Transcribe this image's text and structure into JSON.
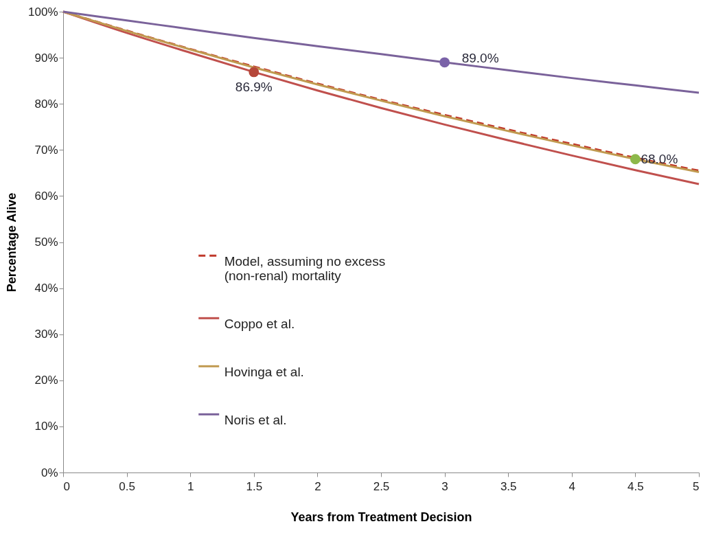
{
  "chart_data": {
    "type": "line",
    "xlabel": "Years from Treatment Decision",
    "ylabel": "Percentage Alive",
    "x": [
      0,
      0.5,
      1,
      1.5,
      2,
      2.5,
      3,
      3.5,
      4,
      4.5,
      5
    ],
    "xlim": [
      0,
      5
    ],
    "xticks": [
      0,
      0.5,
      1,
      1.5,
      2,
      2.5,
      3,
      3.5,
      4,
      4.5,
      5
    ],
    "ylim": [
      0,
      100
    ],
    "yticks": [
      {
        "value": 0,
        "label": "0%"
      },
      {
        "value": 10,
        "label": "10%"
      },
      {
        "value": 20,
        "label": "20%"
      },
      {
        "value": 30,
        "label": "30%"
      },
      {
        "value": 40,
        "label": "40%"
      },
      {
        "value": 50,
        "label": "50%"
      },
      {
        "value": 60,
        "label": "60%"
      },
      {
        "value": 70,
        "label": "70%"
      },
      {
        "value": 80,
        "label": "80%"
      },
      {
        "value": 90,
        "label": "90%"
      },
      {
        "value": 100,
        "label": "100%"
      }
    ],
    "grid": false,
    "legend": "left",
    "series": [
      {
        "name": "Model, assuming no excess (non-renal) mortality",
        "color": "#c0392b",
        "line_style": "dashed",
        "values": [
          100,
          95.9,
          91.9,
          88.1,
          84.4,
          80.9,
          77.6,
          74.4,
          71.3,
          68.3,
          65.5
        ]
      },
      {
        "name": "Coppo et al.",
        "color": "#c0504d",
        "line_style": "solid",
        "values": [
          100,
          95.4,
          91.1,
          86.9,
          82.9,
          79.1,
          75.5,
          72.1,
          68.8,
          65.6,
          62.6
        ]
      },
      {
        "name": "Hovinga et al.",
        "color": "#c09a50",
        "line_style": "solid",
        "values": [
          100,
          95.8,
          91.8,
          87.9,
          84.2,
          80.7,
          77.3,
          74.1,
          71.0,
          68.0,
          65.2
        ]
      },
      {
        "name": "Noris et al.",
        "color": "#7a629a",
        "line_style": "solid",
        "values": [
          100,
          98.1,
          96.2,
          94.3,
          92.5,
          90.8,
          89.0,
          87.3,
          85.6,
          84.0,
          82.4
        ]
      },
      {
        "type": "scatter",
        "x": [
          1.5
        ],
        "values": [
          86.9
        ],
        "color": "#b5473a",
        "value_labels": [
          "86.9%"
        ]
      },
      {
        "type": "scatter",
        "x": [
          3
        ],
        "values": [
          89.0
        ],
        "color": "#7a62a8",
        "value_labels": [
          "89.0%"
        ]
      },
      {
        "type": "scatter",
        "x": [
          4.5
        ],
        "values": [
          68.0
        ],
        "color": "#8db84a",
        "value_labels": [
          "68.0%"
        ]
      }
    ]
  }
}
